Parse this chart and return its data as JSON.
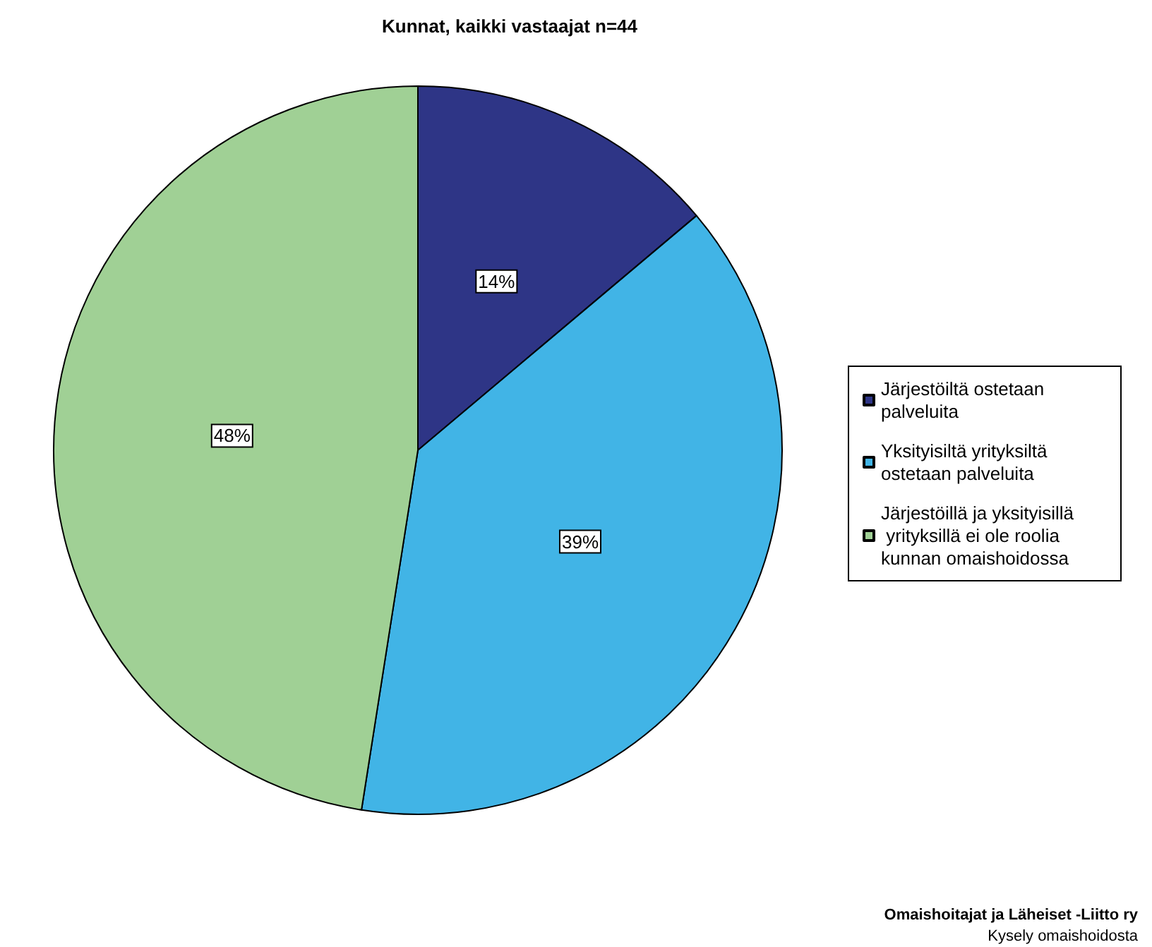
{
  "chart_data": {
    "type": "pie",
    "title": "Kunnat, kaikki vastaajat n=44",
    "categories": [
      "Järjestöiltä ostetaan palveluita",
      "Yksityisiltä yrityksiltä ostetaan palveluita",
      "Järjestöillä ja yksityisillä yrityksillä ei ole roolia kunnan omaishoidossa"
    ],
    "values": [
      14,
      39,
      48
    ],
    "colors": [
      "#2e3586",
      "#41b4e6",
      "#a0d095"
    ],
    "value_labels": [
      "14%",
      "39%",
      "48%"
    ],
    "legend": "right",
    "annotations": [
      "Omaishoitajat ja Läheiset -Liitto ry",
      "Kysely omaishoidosta"
    ]
  }
}
